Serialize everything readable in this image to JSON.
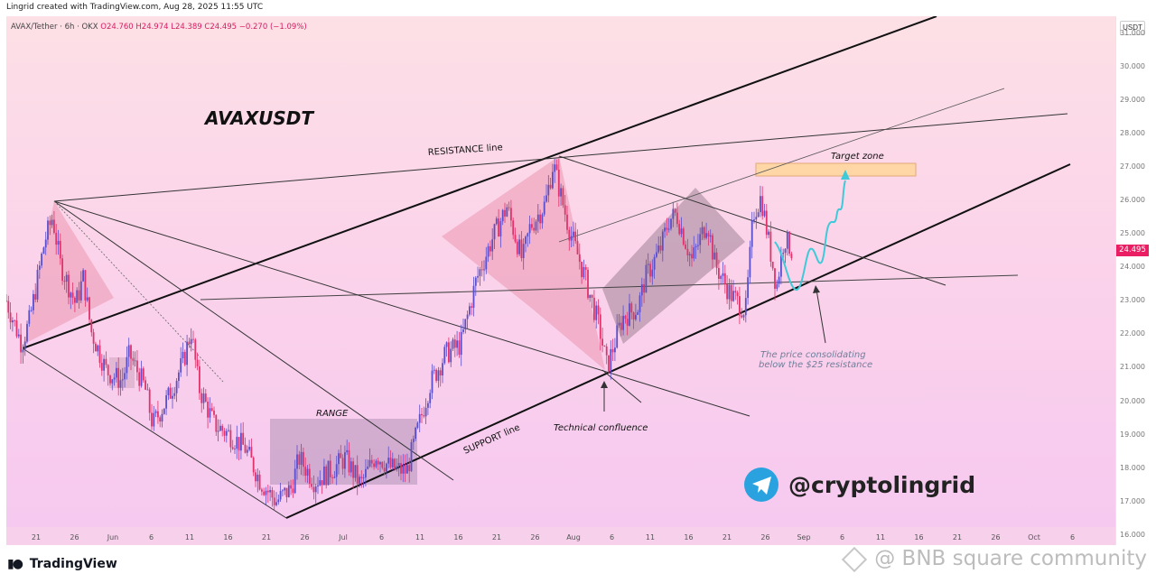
{
  "credit": "Lingrid created with TradingView.com, Aug 28, 2025 11:55 UTC",
  "symbol_line": {
    "pair": "AVAX/Tether · 6h · OKX",
    "ohlc": "O24.760 H24.974 L24.389 C24.495 −0.270 (−1.09%)"
  },
  "price_axis": {
    "unit": "USDT",
    "last_price": "24.495",
    "last_value": 24.495,
    "ticks": [
      "31.000",
      "30.000",
      "29.000",
      "28.000",
      "27.000",
      "26.000",
      "25.000",
      "24.000",
      "23.000",
      "22.000",
      "21.000",
      "20.000",
      "19.000",
      "18.000",
      "17.000",
      "16.000"
    ]
  },
  "time_axis": [
    "21",
    "26",
    "Jun",
    "6",
    "11",
    "16",
    "21",
    "26",
    "Jul",
    "6",
    "11",
    "16",
    "21",
    "26",
    "Aug",
    "6",
    "11",
    "16",
    "21",
    "26",
    "Sep",
    "6",
    "11",
    "16",
    "21",
    "26",
    "Oct",
    "6"
  ],
  "brand": "TradingView",
  "watermark": "@ BNB square community",
  "chart_data": {
    "type": "candlestick",
    "title": "AVAXUSDT",
    "interval": "6h",
    "ylim": [
      15.7,
      31.5
    ],
    "x_range": [
      "2025-05-18",
      "2025-10-09"
    ],
    "series": [
      {
        "name": "AVAX/Tether",
        "close_path": [
          [
            "2025-05-18",
            23.0
          ],
          [
            "2025-05-20",
            21.7
          ],
          [
            "2025-05-21",
            22.4
          ],
          [
            "2025-05-23",
            24.8
          ],
          [
            "2025-05-24",
            25.5
          ],
          [
            "2025-05-25",
            24.1
          ],
          [
            "2025-05-27",
            22.9
          ],
          [
            "2025-05-28",
            23.7
          ],
          [
            "2025-05-29",
            22.1
          ],
          [
            "2025-05-31",
            20.9
          ],
          [
            "2025-06-02",
            20.6
          ],
          [
            "2025-06-03",
            21.4
          ],
          [
            "2025-06-05",
            20.4
          ],
          [
            "2025-06-06",
            19.3
          ],
          [
            "2025-06-08",
            20.1
          ],
          [
            "2025-06-10",
            21.2
          ],
          [
            "2025-06-11",
            22.1
          ],
          [
            "2025-06-12",
            20.4
          ],
          [
            "2025-06-14",
            19.3
          ],
          [
            "2025-06-16",
            19.0
          ],
          [
            "2025-06-18",
            18.6
          ],
          [
            "2025-06-20",
            17.6
          ],
          [
            "2025-06-22",
            17.0
          ],
          [
            "2025-06-24",
            17.4
          ],
          [
            "2025-06-25",
            18.3
          ],
          [
            "2025-06-27",
            17.6
          ],
          [
            "2025-06-29",
            17.9
          ],
          [
            "2025-07-01",
            18.3
          ],
          [
            "2025-07-03",
            17.5
          ],
          [
            "2025-07-05",
            18.4
          ],
          [
            "2025-07-07",
            18.0
          ],
          [
            "2025-07-09",
            17.9
          ],
          [
            "2025-07-10",
            18.8
          ],
          [
            "2025-07-12",
            20.5
          ],
          [
            "2025-07-14",
            21.4
          ],
          [
            "2025-07-16",
            21.7
          ],
          [
            "2025-07-18",
            23.6
          ],
          [
            "2025-07-20",
            24.8
          ],
          [
            "2025-07-22",
            25.8
          ],
          [
            "2025-07-24",
            24.2
          ],
          [
            "2025-07-25",
            25.2
          ],
          [
            "2025-07-27",
            25.9
          ],
          [
            "2025-07-28",
            27.1
          ],
          [
            "2025-07-30",
            25.2
          ],
          [
            "2025-08-01",
            23.8
          ],
          [
            "2025-08-03",
            22.2
          ],
          [
            "2025-08-04",
            21.0
          ],
          [
            "2025-08-06",
            22.5
          ],
          [
            "2025-08-08",
            22.8
          ],
          [
            "2025-08-09",
            23.7
          ],
          [
            "2025-08-11",
            24.6
          ],
          [
            "2025-08-12",
            25.4
          ],
          [
            "2025-08-13",
            25.6
          ],
          [
            "2025-08-15",
            24.2
          ],
          [
            "2025-08-17",
            25.4
          ],
          [
            "2025-08-18",
            24.1
          ],
          [
            "2025-08-20",
            23.2
          ],
          [
            "2025-08-22",
            22.7
          ],
          [
            "2025-08-23",
            25.6
          ],
          [
            "2025-08-24",
            26.1
          ],
          [
            "2025-08-26",
            23.4
          ],
          [
            "2025-08-27",
            24.9
          ],
          [
            "2025-08-28",
            24.495
          ]
        ]
      }
    ],
    "annotations": {
      "title_label": "AVAXUSDT",
      "resistance_label": "RESISTANCE line",
      "support_label": "SUPPORT line",
      "range_label": "RANGE",
      "confluence_label": "Technical confluence",
      "target_label": "Target zone",
      "target_zone": [
        26.75,
        27.1
      ],
      "consolidation_note_line1": "The price consolidating",
      "consolidation_note_line2": "below the $25 resistance",
      "handle": "@cryptolingrid"
    }
  }
}
